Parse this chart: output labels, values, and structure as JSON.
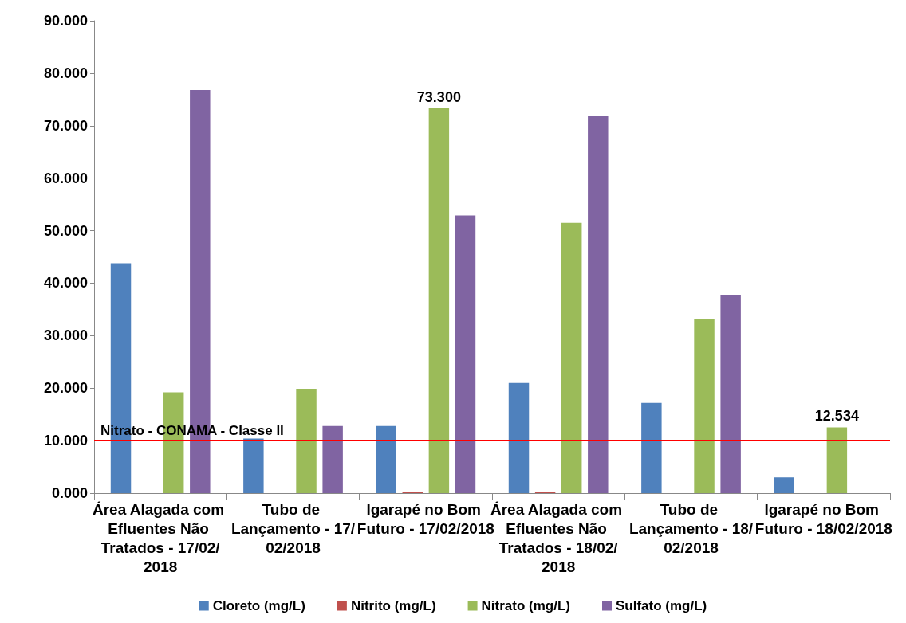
{
  "chart_data": {
    "type": "bar",
    "categories": [
      "Área Alagada com Efluentes Não Tratados - 17/02/2018",
      "Tubo de Lançamento - 17/02/2018",
      "Igarapé no Bom Futuro - 17/02/2018",
      "Área Alagada com Efluentes Não Tratados - 18/02/2018",
      "Tubo de Lançamento - 18/02/2018",
      "Igarapé no Bom Futuro - 18/02/2018"
    ],
    "series": [
      {
        "name": "Cloreto (mg/L)",
        "color": "#4f81bd",
        "values": [
          43.8,
          10.4,
          12.8,
          21.0,
          17.2,
          3.0
        ]
      },
      {
        "name": "Nitrito (mg/L)",
        "color": "#c0504d",
        "values": [
          0,
          0,
          0.2,
          0.2,
          0,
          0
        ]
      },
      {
        "name": "Nitrato (mg/L)",
        "color": "#9bbb59",
        "values": [
          19.2,
          19.9,
          73.3,
          51.5,
          33.2,
          12.534
        ],
        "value_labels": [
          null,
          null,
          "73.300",
          null,
          null,
          "12.534"
        ]
      },
      {
        "name": "Sulfato (mg/L)",
        "color": "#8064a2",
        "values": [
          76.8,
          12.8,
          52.9,
          71.8,
          37.8,
          null
        ]
      }
    ],
    "ylim": [
      0,
      90
    ],
    "yticks": [
      {
        "value": 0,
        "label": "0.000"
      },
      {
        "value": 10,
        "label": "10.000"
      },
      {
        "value": 20,
        "label": "20.000"
      },
      {
        "value": 30,
        "label": "30.000"
      },
      {
        "value": 40,
        "label": "40.000"
      },
      {
        "value": 50,
        "label": "50.000"
      },
      {
        "value": 60,
        "label": "60.000"
      },
      {
        "value": 70,
        "label": "70.000"
      },
      {
        "value": 80,
        "label": "80.000"
      },
      {
        "value": 90,
        "label": "90.000"
      }
    ],
    "ref_lines": [
      {
        "axis": "y",
        "value": 10,
        "label": "Nitrato - CONAMA - Classe II",
        "color": "#ff0000"
      }
    ],
    "grid": false,
    "legend": "bottom"
  }
}
